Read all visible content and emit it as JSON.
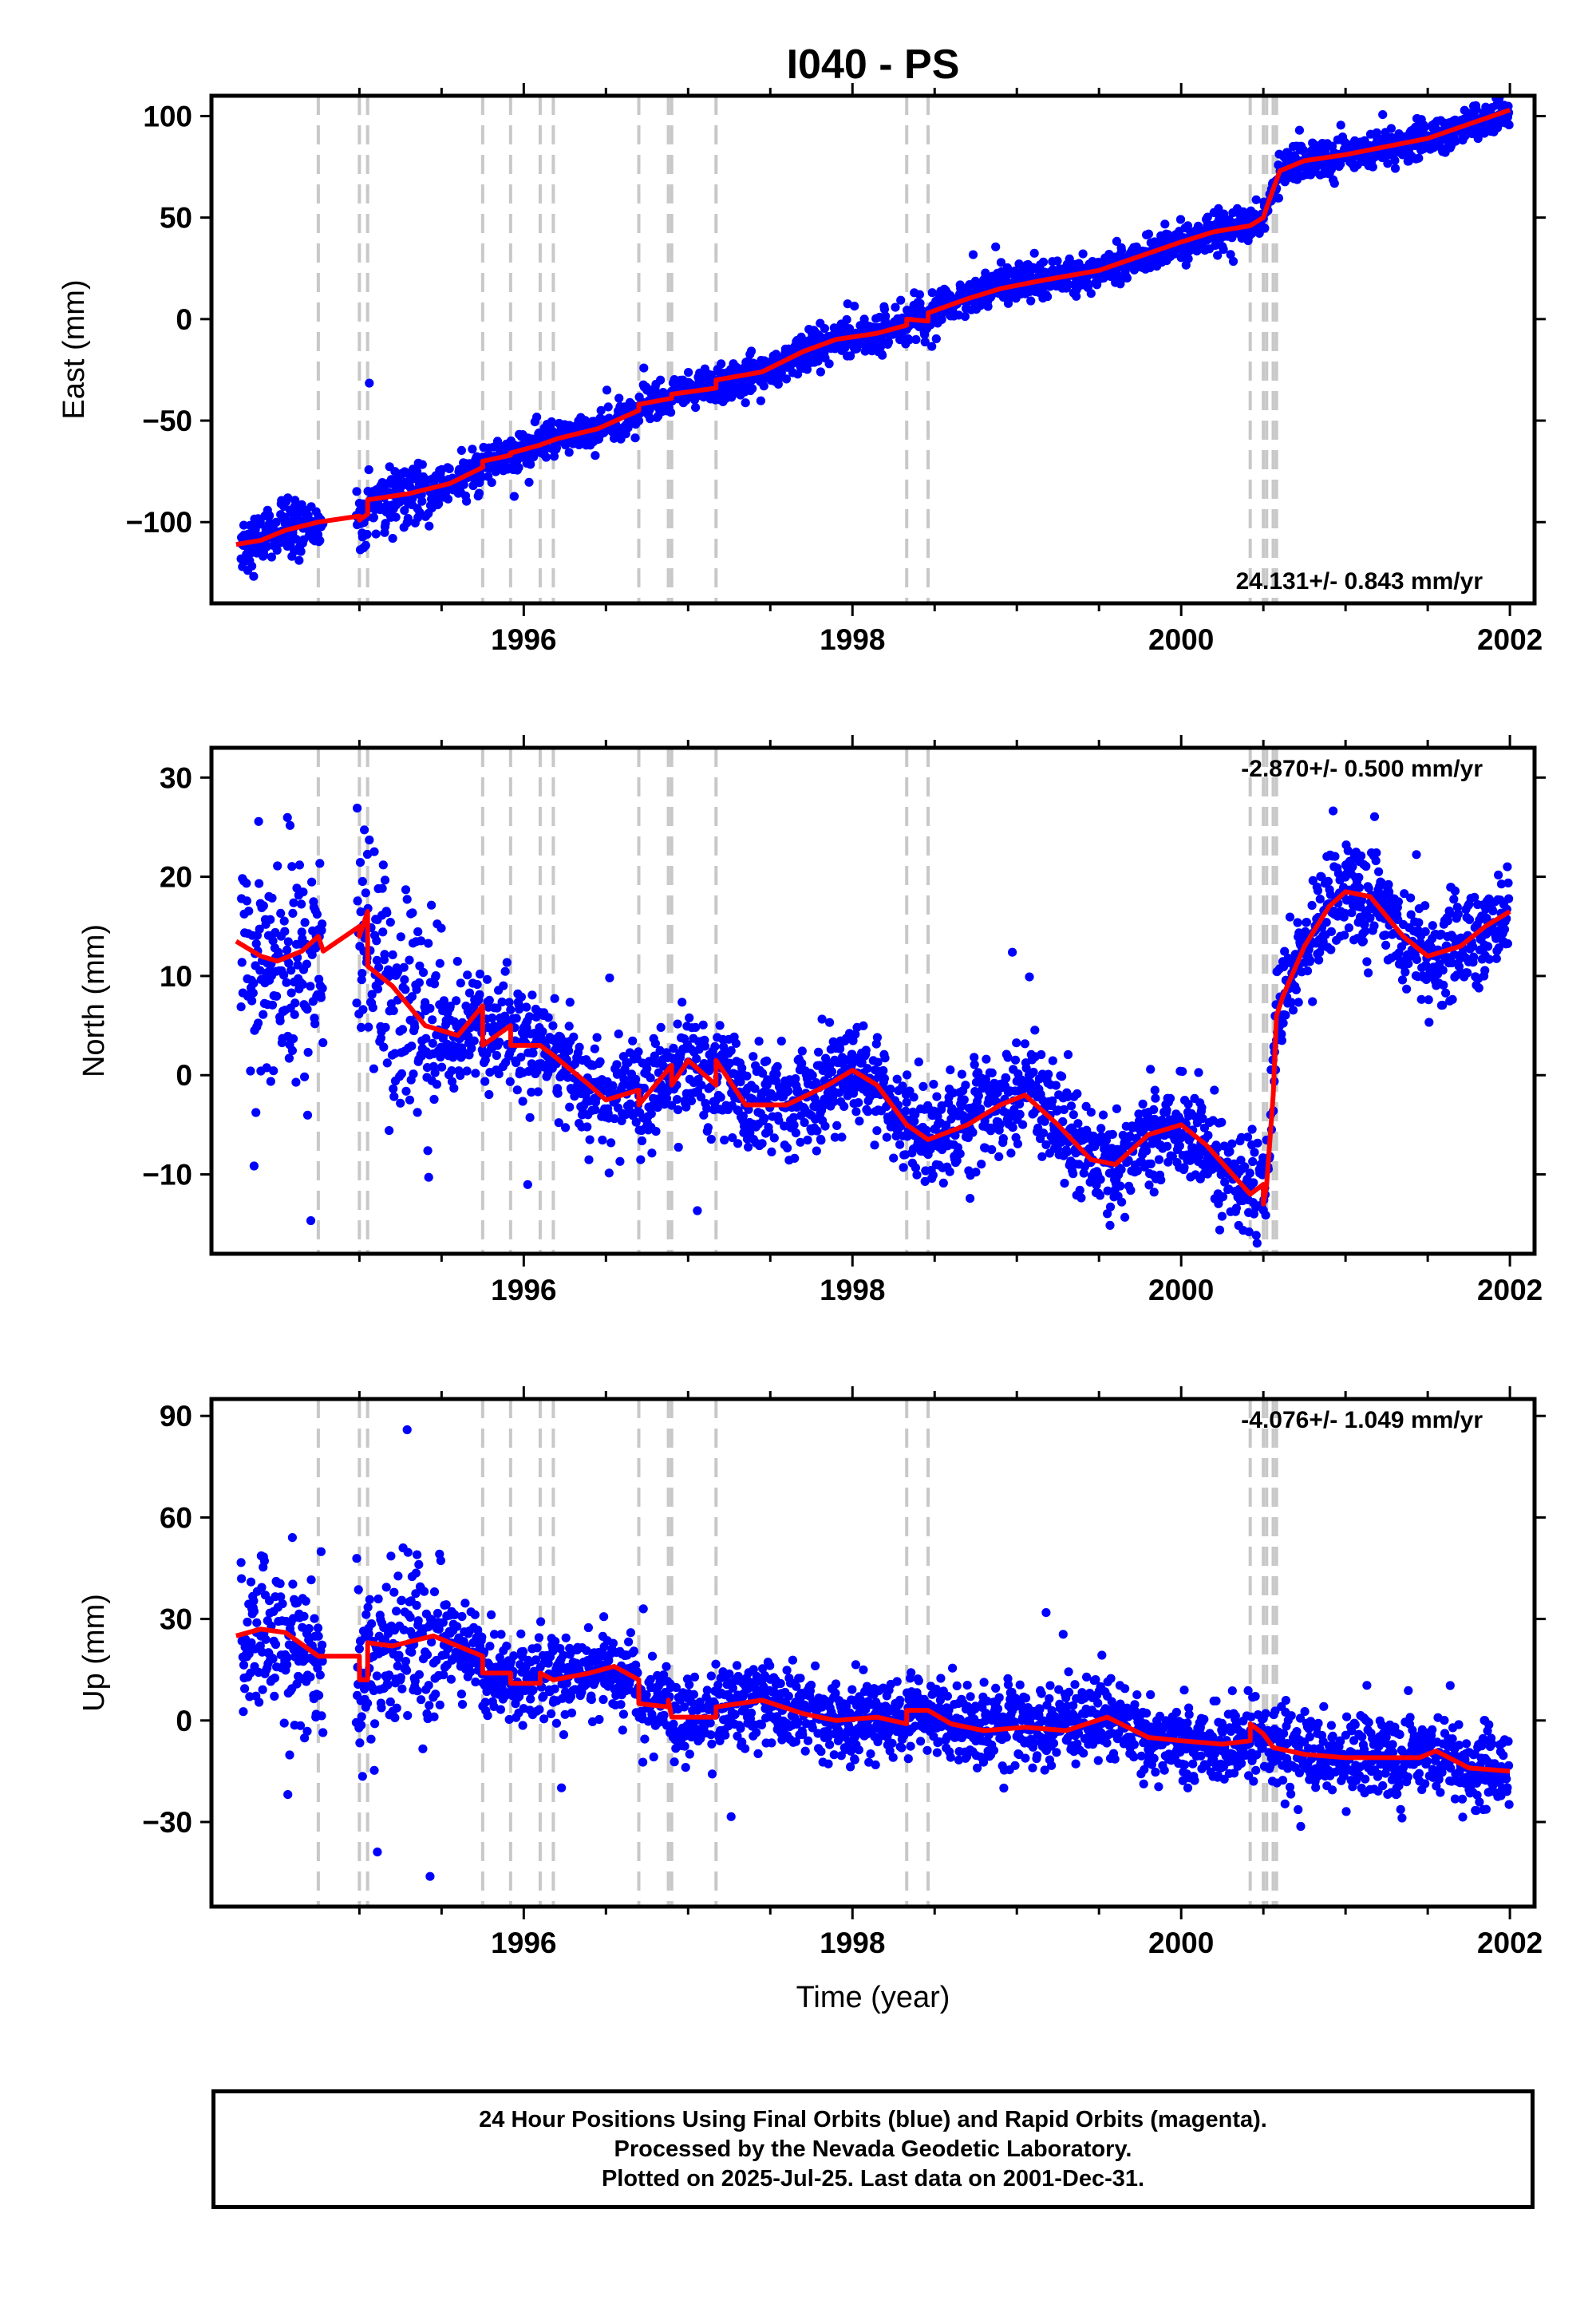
{
  "title": "I040 - PS",
  "footer": {
    "line1": "24 Hour Positions Using Final Orbits (blue) and Rapid Orbits (magenta).",
    "line2": "Processed by the Nevada Geodetic Laboratory.",
    "line3": "Plotted on 2025-Jul-25. Last data on 2001-Dec-31."
  },
  "colors": {
    "data": "#0000ff",
    "model": "#ff0000",
    "steps": "#c8c8c8",
    "frame": "#000000"
  },
  "chart_data": [
    {
      "type": "scatter",
      "panel": "east",
      "ylabel": "East (mm)",
      "xlabel": "",
      "rate": "24.131+/- 0.843 mm/yr",
      "rate_position": "bottom-right",
      "xlim": [
        1994.1,
        2002.15
      ],
      "ylim": [
        -140,
        110
      ],
      "xticks": [
        1996,
        1998,
        2000,
        2002
      ],
      "yticks": [
        -100,
        -50,
        0,
        50,
        100
      ],
      "ytick_labels": [
        "−100",
        "−50",
        "0",
        "50",
        "100"
      ],
      "steps": [
        1994.75,
        1995.0,
        1995.05,
        1995.75,
        1995.92,
        1996.1,
        1996.18,
        1996.7,
        1996.88,
        1996.9,
        1997.17,
        1998.33,
        1998.46,
        2000.42,
        2000.5,
        2000.52,
        2000.56,
        2000.58
      ],
      "model": [
        [
          1994.25,
          -111
        ],
        [
          1994.4,
          -109
        ],
        [
          1994.55,
          -104
        ],
        [
          1994.75,
          -100
        ],
        [
          1995.0,
          -97
        ],
        [
          1995.0,
          -99
        ],
        [
          1995.05,
          -96
        ],
        [
          1995.05,
          -89
        ],
        [
          1995.3,
          -86
        ],
        [
          1995.55,
          -81
        ],
        [
          1995.75,
          -73
        ],
        [
          1995.75,
          -70
        ],
        [
          1995.92,
          -67
        ],
        [
          1995.92,
          -66
        ],
        [
          1996.1,
          -62
        ],
        [
          1996.2,
          -59
        ],
        [
          1996.45,
          -54
        ],
        [
          1996.7,
          -45
        ],
        [
          1996.7,
          -42
        ],
        [
          1996.9,
          -39
        ],
        [
          1996.9,
          -37
        ],
        [
          1997.17,
          -34
        ],
        [
          1997.17,
          -30
        ],
        [
          1997.45,
          -26
        ],
        [
          1997.7,
          -16
        ],
        [
          1997.9,
          -10
        ],
        [
          1998.15,
          -7
        ],
        [
          1998.33,
          -3
        ],
        [
          1998.33,
          0
        ],
        [
          1998.46,
          -1
        ],
        [
          1998.46,
          3
        ],
        [
          1998.7,
          10
        ],
        [
          1998.9,
          15
        ],
        [
          1999.15,
          19
        ],
        [
          1999.5,
          24
        ],
        [
          1999.75,
          31
        ],
        [
          2000.0,
          38
        ],
        [
          2000.2,
          43
        ],
        [
          2000.42,
          46
        ],
        [
          2000.5,
          50
        ],
        [
          2000.52,
          55
        ],
        [
          2000.56,
          64
        ],
        [
          2000.6,
          73
        ],
        [
          2000.75,
          78
        ],
        [
          2001.0,
          81
        ],
        [
          2001.25,
          85
        ],
        [
          2001.5,
          89
        ],
        [
          2001.75,
          96
        ],
        [
          2002.0,
          103
        ]
      ],
      "trend": {
        "t0": 1994.25,
        "v0": -111,
        "rate": 24.13
      },
      "offsets": [
        [
          2000.52,
          6
        ],
        [
          2000.56,
          10
        ],
        [
          2000.6,
          6
        ]
      ],
      "noise": 4.5,
      "seasonal": 2.5
    },
    {
      "type": "scatter",
      "panel": "north",
      "ylabel": "North (mm)",
      "xlabel": "",
      "rate": "-2.870+/- 0.500 mm/yr",
      "rate_position": "top-right",
      "xlim": [
        1994.1,
        2002.15
      ],
      "ylim": [
        -18,
        33
      ],
      "xticks": [
        1996,
        1998,
        2000,
        2002
      ],
      "yticks": [
        -10,
        0,
        10,
        20,
        30
      ],
      "ytick_labels": [
        "−10",
        "0",
        "10",
        "20",
        "30"
      ],
      "steps": [
        1994.75,
        1995.0,
        1995.05,
        1995.75,
        1995.92,
        1996.1,
        1996.18,
        1996.7,
        1996.88,
        1996.9,
        1997.17,
        1998.33,
        1998.46,
        2000.42,
        2000.5,
        2000.52,
        2000.56,
        2000.58
      ],
      "model": [
        [
          1994.25,
          13.5
        ],
        [
          1994.4,
          12
        ],
        [
          1994.5,
          11.5
        ],
        [
          1994.65,
          12.5
        ],
        [
          1994.75,
          14
        ],
        [
          1994.78,
          12.5
        ],
        [
          1995.0,
          15
        ],
        [
          1995.0,
          14
        ],
        [
          1995.05,
          16.5
        ],
        [
          1995.05,
          11
        ],
        [
          1995.2,
          9
        ],
        [
          1995.4,
          5
        ],
        [
          1995.6,
          4
        ],
        [
          1995.75,
          7
        ],
        [
          1995.75,
          3
        ],
        [
          1995.92,
          5
        ],
        [
          1995.92,
          3
        ],
        [
          1996.1,
          3
        ],
        [
          1996.18,
          2
        ],
        [
          1996.4,
          -1
        ],
        [
          1996.5,
          -2.5
        ],
        [
          1996.7,
          -1.5
        ],
        [
          1996.7,
          -3
        ],
        [
          1996.9,
          1
        ],
        [
          1996.9,
          -1
        ],
        [
          1997.0,
          1.5
        ],
        [
          1997.17,
          -1
        ],
        [
          1997.17,
          1.5
        ],
        [
          1997.35,
          -3
        ],
        [
          1997.6,
          -3
        ],
        [
          1997.85,
          -1
        ],
        [
          1998.0,
          0.5
        ],
        [
          1998.15,
          -1
        ],
        [
          1998.33,
          -5
        ],
        [
          1998.46,
          -6.5
        ],
        [
          1998.7,
          -5
        ],
        [
          1998.9,
          -3
        ],
        [
          1999.05,
          -2
        ],
        [
          1999.25,
          -5
        ],
        [
          1999.45,
          -8.5
        ],
        [
          1999.6,
          -9
        ],
        [
          1999.8,
          -6
        ],
        [
          2000.0,
          -5
        ],
        [
          2000.15,
          -7
        ],
        [
          2000.42,
          -12
        ],
        [
          2000.5,
          -11
        ],
        [
          2000.5,
          -13
        ],
        [
          2000.52,
          -11
        ],
        [
          2000.56,
          -2
        ],
        [
          2000.58,
          6
        ],
        [
          2000.62,
          8
        ],
        [
          2000.75,
          13
        ],
        [
          2000.9,
          17
        ],
        [
          2001.0,
          18.5
        ],
        [
          2001.15,
          18
        ],
        [
          2001.35,
          14
        ],
        [
          2001.5,
          12
        ],
        [
          2001.7,
          13
        ],
        [
          2001.85,
          15
        ],
        [
          2002.0,
          16.5
        ]
      ],
      "noise": 2.6,
      "seasonal": 0
    },
    {
      "type": "scatter",
      "panel": "up",
      "ylabel": "Up (mm)",
      "xlabel": "Time (year)",
      "rate": "-4.076+/- 1.049 mm/yr",
      "rate_position": "top-right",
      "xlim": [
        1994.1,
        2002.15
      ],
      "ylim": [
        -55,
        95
      ],
      "xticks": [
        1996,
        1998,
        2000,
        2002
      ],
      "yticks": [
        -30,
        0,
        30,
        60,
        90
      ],
      "ytick_labels": [
        "−30",
        "0",
        "30",
        "60",
        "90"
      ],
      "steps": [
        1994.75,
        1995.0,
        1995.05,
        1995.75,
        1995.92,
        1996.1,
        1996.18,
        1996.7,
        1996.88,
        1996.9,
        1997.17,
        1998.33,
        1998.46,
        2000.42,
        2000.5,
        2000.52,
        2000.56,
        2000.58
      ],
      "model": [
        [
          1994.25,
          25
        ],
        [
          1994.4,
          27
        ],
        [
          1994.55,
          26
        ],
        [
          1994.75,
          19
        ],
        [
          1994.9,
          19
        ],
        [
          1995.0,
          19
        ],
        [
          1995.0,
          12
        ],
        [
          1995.05,
          12
        ],
        [
          1995.05,
          23
        ],
        [
          1995.2,
          22
        ],
        [
          1995.45,
          25
        ],
        [
          1995.6,
          22
        ],
        [
          1995.75,
          19
        ],
        [
          1995.75,
          14
        ],
        [
          1995.92,
          14
        ],
        [
          1995.92,
          11
        ],
        [
          1996.1,
          11
        ],
        [
          1996.1,
          14
        ],
        [
          1996.18,
          12
        ],
        [
          1996.4,
          14
        ],
        [
          1996.55,
          16
        ],
        [
          1996.7,
          12
        ],
        [
          1996.7,
          5
        ],
        [
          1996.88,
          4
        ],
        [
          1996.88,
          6
        ],
        [
          1996.9,
          1
        ],
        [
          1997.17,
          1
        ],
        [
          1997.17,
          4
        ],
        [
          1997.45,
          6
        ],
        [
          1997.7,
          2
        ],
        [
          1997.9,
          0
        ],
        [
          1998.15,
          1
        ],
        [
          1998.33,
          -1
        ],
        [
          1998.33,
          3
        ],
        [
          1998.46,
          3
        ],
        [
          1998.6,
          -1
        ],
        [
          1998.8,
          -3
        ],
        [
          1999.05,
          -2
        ],
        [
          1999.3,
          -3
        ],
        [
          1999.55,
          1
        ],
        [
          1999.8,
          -5
        ],
        [
          2000.0,
          -6
        ],
        [
          2000.25,
          -7
        ],
        [
          2000.42,
          -6
        ],
        [
          2000.42,
          -1
        ],
        [
          2000.5,
          -4
        ],
        [
          2000.56,
          -8
        ],
        [
          2000.75,
          -10
        ],
        [
          2001.0,
          -11
        ],
        [
          2001.25,
          -11
        ],
        [
          2001.45,
          -11
        ],
        [
          2001.55,
          -9
        ],
        [
          2001.75,
          -14
        ],
        [
          2002.0,
          -15
        ]
      ],
      "noise": 6,
      "seasonal": 0
    }
  ],
  "xtick_labels": [
    "1996",
    "1998",
    "2000",
    "2002"
  ]
}
